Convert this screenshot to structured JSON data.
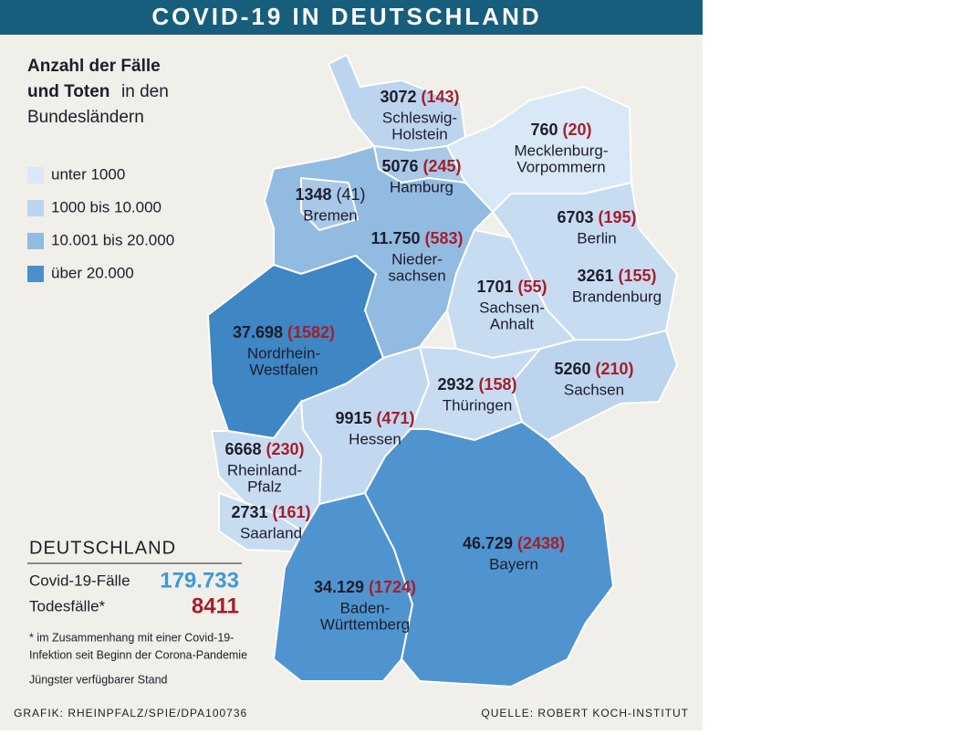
{
  "header": {
    "title": "COVID-19 IN DEUTSCHLAND"
  },
  "intro": {
    "bold_lines": [
      "Anzahl der Fälle",
      "und Toten"
    ],
    "rest_inline": "in den",
    "rest_line": "Bundesländern"
  },
  "legend": [
    {
      "label": "unter 1000",
      "color": "#d9e8f6"
    },
    {
      "label": "1000 bis 10.000",
      "color": "#bcd4ee"
    },
    {
      "label": "10.001 bis 20.000",
      "color": "#92bbe2"
    },
    {
      "label": "über 20.000",
      "color": "#4a8fcb"
    }
  ],
  "states": [
    {
      "cases": "3072",
      "deaths": "(143)",
      "death_color": "#a61e2a",
      "name": [
        "Schleswig-",
        "Holstein"
      ],
      "color": "#bcd4ee"
    },
    {
      "cases": "760",
      "deaths": "(20)",
      "death_color": "#a61e2a",
      "name": [
        "Mecklenburg-",
        "Vorpommern"
      ],
      "color": "#d9e8f6"
    },
    {
      "cases": "5076",
      "deaths": "(245)",
      "death_color": "#a61e2a",
      "name": [
        "Hamburg"
      ],
      "color": "#a9c8e8"
    },
    {
      "cases": "1348",
      "deaths": "(41)",
      "death_color": "#1d1d2b",
      "name": [
        "Bremen"
      ],
      "color": "#a9c8e8"
    },
    {
      "cases": "11.750",
      "deaths": "(583)",
      "death_color": "#a61e2a",
      "name": [
        "Nieder-",
        "sachsen"
      ],
      "color": "#92bbe2"
    },
    {
      "cases": "6703",
      "deaths": "(195)",
      "death_color": "#a61e2a",
      "name": [
        "Berlin"
      ],
      "color": "#bcd4ee"
    },
    {
      "cases": "3261",
      "deaths": "(155)",
      "death_color": "#a61e2a",
      "name": [
        "Brandenburg"
      ],
      "color": "#c8dcf1"
    },
    {
      "cases": "1701",
      "deaths": "(55)",
      "death_color": "#a61e2a",
      "name": [
        "Sachsen-",
        "Anhalt"
      ],
      "color": "#c8dcf1"
    },
    {
      "cases": "37.698",
      "deaths": "(1582)",
      "death_color": "#a61e2a",
      "name": [
        "Nordrhein-",
        "Westfalen"
      ],
      "color": "#3e86c4"
    },
    {
      "cases": "5260",
      "deaths": "(210)",
      "death_color": "#a61e2a",
      "name": [
        "Sachsen"
      ],
      "color": "#bcd4ee"
    },
    {
      "cases": "2932",
      "deaths": "(158)",
      "death_color": "#a61e2a",
      "name": [
        "Thüringen"
      ],
      "color": "#c8dcf1"
    },
    {
      "cases": "9915",
      "deaths": "(471)",
      "death_color": "#a61e2a",
      "name": [
        "Hessen"
      ],
      "color": "#c2d8f0"
    },
    {
      "cases": "6668",
      "deaths": "(230)",
      "death_color": "#a61e2a",
      "name": [
        "Rheinland-",
        "Pfalz"
      ],
      "color": "#c8dcf1"
    },
    {
      "cases": "2731",
      "deaths": "(161)",
      "death_color": "#a61e2a",
      "name": [
        "Saarland"
      ],
      "color": "#c8dcf1"
    },
    {
      "cases": "46.729",
      "deaths": "(2438)",
      "death_color": "#a61e2a",
      "name": [
        "Bayern"
      ],
      "color": "#4f94cf"
    },
    {
      "cases": "34.129",
      "deaths": "(1724)",
      "death_color": "#a61e2a",
      "name": [
        "Baden-",
        "Württemberg"
      ],
      "color": "#4f94cf"
    }
  ],
  "summary": {
    "title": "DEUTSCHLAND",
    "rows": [
      {
        "label": "Covid-19-Fälle",
        "value": "179.733",
        "color": "#3d9ad8"
      },
      {
        "label": "Todesfälle*",
        "value": "8411",
        "color": "#a61e2a"
      }
    ],
    "footnote": [
      "* im Zusammenhang mit einer Covid-19-",
      "Infektion seit Beginn der Corona-Pandemie"
    ],
    "status": "Jüngster verfügbarer Stand"
  },
  "footer": {
    "left": "GRAFIK: RHEINPFALZ/SPIE/DPA100736",
    "right": "QUELLE: ROBERT KOCH-INSTITUT"
  }
}
